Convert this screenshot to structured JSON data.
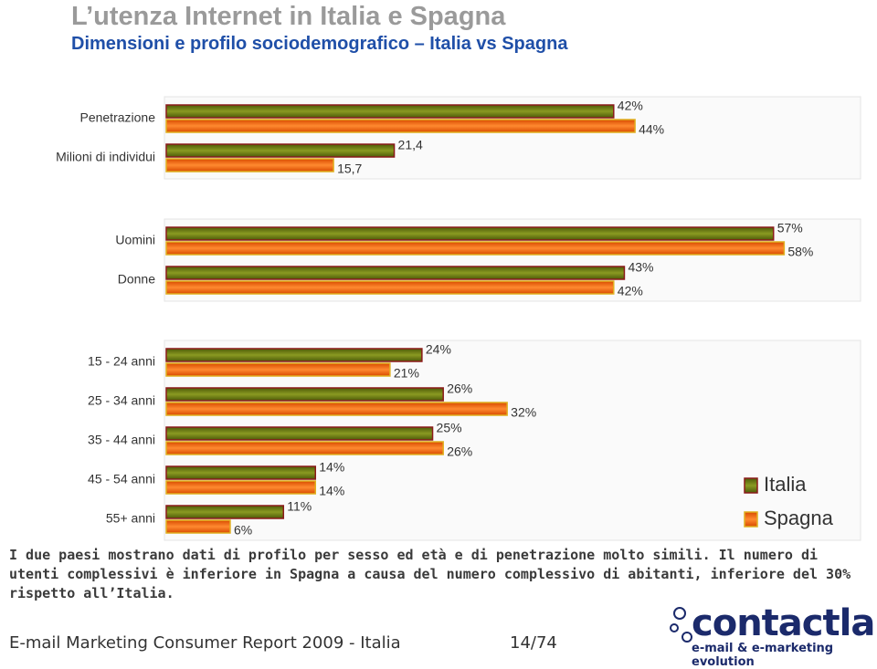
{
  "title": "L’utenza Internet in Italia e Spagna",
  "subtitle": "Dimensioni e profilo sociodemografico – Italia vs Spagna",
  "chart_data": [
    {
      "type": "hbar",
      "categories": [
        "Penetrazione",
        "Milioni di individui"
      ],
      "xlim": [
        0,
        65
      ],
      "series": [
        {
          "color": "#6b7d12",
          "values": [
            42,
            21.4
          ],
          "value_labels": [
            "42%",
            "21,4"
          ]
        },
        {
          "color": "#f05a0a",
          "values": [
            44,
            15.7
          ],
          "value_labels": [
            "44%",
            "15,7"
          ]
        }
      ]
    },
    {
      "type": "hbar",
      "categories": [
        "Uomini",
        "Donne"
      ],
      "xlim": [
        0,
        65
      ],
      "series": [
        {
          "color": "#6b7d12",
          "values": [
            57,
            43
          ],
          "value_labels": [
            "57%",
            "43%"
          ]
        },
        {
          "color": "#f05a0a",
          "values": [
            58,
            42
          ],
          "value_labels": [
            "58%",
            "42%"
          ]
        }
      ]
    },
    {
      "type": "hbar",
      "categories": [
        "15 - 24 anni",
        "25 - 34 anni",
        "35 - 44 anni",
        "45 - 54 anni",
        "55+ anni"
      ],
      "xlim": [
        0,
        65
      ],
      "legend": "right",
      "series": [
        {
          "name": "Italia",
          "color": "#6b7d12",
          "values": [
            24,
            26,
            25,
            14,
            11
          ],
          "value_labels": [
            "24%",
            "26%",
            "25%",
            "14%",
            "11%"
          ]
        },
        {
          "name": "Spagna",
          "color": "#f05a0a",
          "values": [
            21,
            32,
            26,
            14,
            6
          ],
          "value_labels": [
            "21%",
            "32%",
            "26%",
            "14%",
            "6%"
          ]
        }
      ]
    }
  ],
  "paragraph": "I due paesi mostrano dati di profilo per sesso ed età e di penetrazione molto simili. Il numero di utenti complessivi è inferiore in Spagna a causa del numero complessivo di abitanti, inferiore del 30% rispetto all’Italia.",
  "footer": "E-mail Marketing Consumer Report 2009 - Italia",
  "page": "14/74",
  "logo": "contactlab",
  "tagline": "e-mail & e-marketing evolution"
}
